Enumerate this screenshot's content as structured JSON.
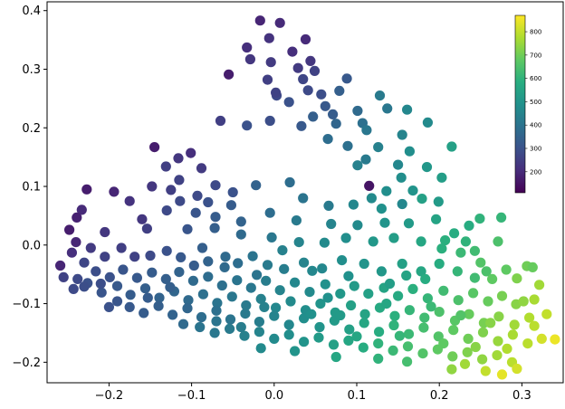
{
  "chart_data": {
    "type": "scatter",
    "title": "",
    "xlabel": "",
    "ylabel": "",
    "xlim": [
      -0.275,
      0.35
    ],
    "ylim": [
      -0.235,
      0.415
    ],
    "x_ticks": [
      -0.2,
      -0.1,
      0.0,
      0.1,
      0.2,
      0.3
    ],
    "x_tick_labels": [
      "−0.2",
      "−0.1",
      "0.0",
      "0.1",
      "0.2",
      "0.3"
    ],
    "y_ticks": [
      -0.2,
      -0.1,
      0.0,
      0.1,
      0.2,
      0.3,
      0.4
    ],
    "y_tick_labels": [
      "−0.2",
      "−0.1",
      "0.0",
      "0.1",
      "0.2",
      "0.3",
      "0.4"
    ],
    "grid": false,
    "colorbar": {
      "colormap": "viridis",
      "range": [
        110,
        870
      ],
      "ticks": [
        200,
        300,
        400,
        500,
        600,
        700,
        800
      ],
      "tick_labels": [
        "200",
        "300",
        "400",
        "500",
        "600",
        "700",
        "800"
      ]
    },
    "points": [
      [
        -0.017,
        0.383,
        190
      ],
      [
        -0.033,
        0.337,
        210
      ],
      [
        0.038,
        0.351,
        200
      ],
      [
        0.007,
        0.379,
        200
      ],
      [
        -0.006,
        0.353,
        220
      ],
      [
        -0.004,
        0.312,
        240
      ],
      [
        0.044,
        0.314,
        230
      ],
      [
        0.049,
        0.297,
        260
      ],
      [
        -0.029,
        0.317,
        230
      ],
      [
        0.035,
        0.283,
        270
      ],
      [
        0.018,
        0.244,
        300
      ],
      [
        0.003,
        0.255,
        280
      ],
      [
        0.062,
        0.237,
        320
      ],
      [
        -0.055,
        0.291,
        170
      ],
      [
        0.079,
        0.263,
        340
      ],
      [
        0.101,
        0.229,
        370
      ],
      [
        0.107,
        0.208,
        390
      ],
      [
        0.075,
        0.207,
        360
      ],
      [
        0.047,
        0.219,
        340
      ],
      [
        0.128,
        0.255,
        420
      ],
      [
        0.137,
        0.233,
        410
      ],
      [
        0.161,
        0.231,
        460
      ],
      [
        0.186,
        0.209,
        470
      ],
      [
        0.155,
        0.188,
        450
      ],
      [
        0.126,
        0.167,
        440
      ],
      [
        -0.033,
        0.204,
        300
      ],
      [
        -0.005,
        0.212,
        290
      ],
      [
        0.033,
        0.203,
        320
      ],
      [
        0.065,
        0.181,
        380
      ],
      [
        0.089,
        0.169,
        390
      ],
      [
        0.111,
        0.146,
        420
      ],
      [
        0.164,
        0.16,
        480
      ],
      [
        0.185,
        0.133,
        510
      ],
      [
        0.203,
        0.115,
        530
      ],
      [
        0.215,
        0.168,
        540
      ],
      [
        0.118,
        0.08,
        470
      ],
      [
        0.096,
        0.069,
        460
      ],
      [
        0.13,
        0.062,
        490
      ],
      [
        0.115,
        0.101,
        150
      ],
      [
        0.154,
        0.115,
        480
      ],
      [
        0.168,
        0.093,
        500
      ],
      [
        0.199,
        0.074,
        520
      ],
      [
        0.155,
        0.07,
        460
      ],
      [
        0.101,
        0.136,
        440
      ],
      [
        0.019,
        0.107,
        380
      ],
      [
        -0.022,
        0.102,
        350
      ],
      [
        0.035,
        0.08,
        400
      ],
      [
        0.066,
        0.067,
        420
      ],
      [
        -0.101,
        0.157,
        210
      ],
      [
        -0.116,
        0.148,
        230
      ],
      [
        -0.131,
        0.134,
        250
      ],
      [
        -0.088,
        0.131,
        240
      ],
      [
        -0.115,
        0.111,
        260
      ],
      [
        -0.148,
        0.1,
        230
      ],
      [
        -0.125,
        0.094,
        250
      ],
      [
        -0.071,
        0.102,
        280
      ],
      [
        -0.05,
        0.09,
        300
      ],
      [
        -0.093,
        0.084,
        280
      ],
      [
        -0.08,
        0.073,
        300
      ],
      [
        -0.114,
        0.075,
        280
      ],
      [
        -0.052,
        0.068,
        330
      ],
      [
        -0.095,
        0.055,
        310
      ],
      [
        -0.13,
        0.059,
        280
      ],
      [
        -0.071,
        0.048,
        330
      ],
      [
        -0.04,
        0.04,
        350
      ],
      [
        -0.005,
        0.055,
        380
      ],
      [
        0.027,
        0.042,
        420
      ],
      [
        0.069,
        0.036,
        450
      ],
      [
        0.101,
        0.034,
        470
      ],
      [
        0.134,
        0.038,
        500
      ],
      [
        0.163,
        0.037,
        520
      ],
      [
        0.196,
        0.044,
        550
      ],
      [
        0.218,
        0.02,
        580
      ],
      [
        0.236,
        0.033,
        580
      ],
      [
        0.275,
        0.047,
        610
      ],
      [
        0.207,
        0.008,
        590
      ],
      [
        0.232,
        0.006,
        600
      ],
      [
        0.178,
        0.006,
        560
      ],
      [
        0.145,
        0.012,
        530
      ],
      [
        0.12,
        0.006,
        510
      ],
      [
        0.087,
        0.012,
        480
      ],
      [
        0.061,
        0.004,
        470
      ],
      [
        0.03,
        0.005,
        450
      ],
      [
        -0.003,
        0.013,
        410
      ],
      [
        -0.04,
        0.018,
        370
      ],
      [
        -0.072,
        0.029,
        340
      ],
      [
        -0.105,
        0.027,
        310
      ],
      [
        -0.154,
        0.028,
        250
      ],
      [
        -0.205,
        0.022,
        230
      ],
      [
        -0.233,
        0.06,
        200
      ],
      [
        -0.227,
        0.095,
        170
      ],
      [
        -0.194,
        0.091,
        190
      ],
      [
        -0.175,
        0.075,
        220
      ],
      [
        -0.16,
        0.044,
        230
      ],
      [
        -0.239,
        0.047,
        180
      ],
      [
        -0.248,
        0.026,
        170
      ],
      [
        -0.259,
        -0.035,
        190
      ],
      [
        -0.24,
        0.005,
        190
      ],
      [
        -0.245,
        -0.013,
        210
      ],
      [
        -0.222,
        -0.005,
        240
      ],
      [
        -0.205,
        -0.02,
        260
      ],
      [
        -0.185,
        -0.005,
        250
      ],
      [
        -0.169,
        -0.02,
        260
      ],
      [
        -0.15,
        -0.018,
        280
      ],
      [
        -0.13,
        -0.01,
        300
      ],
      [
        -0.113,
        -0.021,
        320
      ],
      [
        -0.097,
        -0.035,
        330
      ],
      [
        -0.08,
        -0.028,
        350
      ],
      [
        -0.059,
        -0.02,
        370
      ],
      [
        -0.044,
        -0.031,
        380
      ],
      [
        -0.026,
        -0.019,
        400
      ],
      [
        -0.008,
        -0.034,
        420
      ],
      [
        0.012,
        -0.041,
        430
      ],
      [
        0.036,
        -0.03,
        450
      ],
      [
        0.058,
        -0.04,
        460
      ],
      [
        0.082,
        -0.026,
        480
      ],
      [
        0.109,
        -0.032,
        500
      ],
      [
        0.13,
        -0.045,
        510
      ],
      [
        0.155,
        -0.032,
        540
      ],
      [
        0.178,
        -0.045,
        560
      ],
      [
        0.2,
        -0.032,
        580
      ],
      [
        0.222,
        -0.045,
        610
      ],
      [
        0.243,
        -0.056,
        630
      ],
      [
        0.257,
        -0.045,
        650
      ],
      [
        0.281,
        -0.042,
        680
      ],
      [
        0.306,
        -0.036,
        700
      ],
      [
        0.313,
        -0.038,
        690
      ],
      [
        0.226,
        -0.013,
        620
      ],
      [
        0.25,
        -0.03,
        660
      ],
      [
        -0.23,
        -0.03,
        270
      ],
      [
        -0.216,
        -0.045,
        290
      ],
      [
        -0.199,
        -0.055,
        300
      ],
      [
        -0.183,
        -0.042,
        310
      ],
      [
        -0.166,
        -0.056,
        320
      ],
      [
        -0.148,
        -0.047,
        330
      ],
      [
        -0.131,
        -0.058,
        340
      ],
      [
        -0.115,
        -0.046,
        350
      ],
      [
        -0.098,
        -0.061,
        370
      ],
      [
        -0.08,
        -0.054,
        380
      ],
      [
        -0.063,
        -0.069,
        390
      ],
      [
        -0.045,
        -0.06,
        400
      ],
      [
        -0.028,
        -0.073,
        410
      ],
      [
        -0.01,
        -0.061,
        430
      ],
      [
        0.007,
        -0.077,
        450
      ],
      [
        0.025,
        -0.064,
        460
      ],
      [
        0.043,
        -0.08,
        470
      ],
      [
        0.062,
        -0.067,
        490
      ],
      [
        0.08,
        -0.083,
        510
      ],
      [
        0.097,
        -0.07,
        520
      ],
      [
        0.114,
        -0.083,
        540
      ],
      [
        0.133,
        -0.073,
        550
      ],
      [
        0.15,
        -0.087,
        570
      ],
      [
        0.168,
        -0.075,
        590
      ],
      [
        0.186,
        -0.091,
        610
      ],
      [
        0.205,
        -0.078,
        630
      ],
      [
        0.223,
        -0.094,
        650
      ],
      [
        0.241,
        -0.082,
        670
      ],
      [
        0.259,
        -0.096,
        690
      ],
      [
        0.276,
        -0.087,
        710
      ],
      [
        0.293,
        -0.101,
        730
      ],
      [
        0.315,
        -0.093,
        770
      ],
      [
        0.264,
        -0.058,
        680
      ],
      [
        -0.243,
        -0.075,
        280
      ],
      [
        -0.226,
        -0.065,
        300
      ],
      [
        -0.209,
        -0.081,
        310
      ],
      [
        -0.19,
        -0.07,
        320
      ],
      [
        -0.174,
        -0.085,
        330
      ],
      [
        -0.156,
        -0.074,
        340
      ],
      [
        -0.139,
        -0.09,
        350
      ],
      [
        -0.121,
        -0.079,
        360
      ],
      [
        -0.104,
        -0.094,
        370
      ],
      [
        -0.086,
        -0.084,
        390
      ],
      [
        -0.069,
        -0.099,
        400
      ],
      [
        -0.051,
        -0.088,
        410
      ],
      [
        -0.034,
        -0.103,
        420
      ],
      [
        -0.016,
        -0.092,
        440
      ],
      [
        0.002,
        -0.107,
        460
      ],
      [
        0.02,
        -0.096,
        470
      ],
      [
        0.038,
        -0.111,
        480
      ],
      [
        0.056,
        -0.1,
        500
      ],
      [
        0.074,
        -0.115,
        520
      ],
      [
        0.093,
        -0.103,
        540
      ],
      [
        0.11,
        -0.118,
        550
      ],
      [
        0.128,
        -0.107,
        570
      ],
      [
        0.146,
        -0.121,
        590
      ],
      [
        0.164,
        -0.111,
        610
      ],
      [
        0.182,
        -0.124,
        630
      ],
      [
        0.2,
        -0.114,
        650
      ],
      [
        0.219,
        -0.129,
        670
      ],
      [
        0.236,
        -0.118,
        690
      ],
      [
        0.254,
        -0.133,
        710
      ],
      [
        0.272,
        -0.122,
        730
      ],
      [
        0.291,
        -0.136,
        760
      ],
      [
        0.309,
        -0.124,
        780
      ],
      [
        0.33,
        -0.118,
        800
      ],
      [
        -0.175,
        -0.106,
        320
      ],
      [
        -0.158,
        -0.116,
        330
      ],
      [
        -0.14,
        -0.104,
        340
      ],
      [
        -0.123,
        -0.119,
        350
      ],
      [
        -0.105,
        -0.108,
        360
      ],
      [
        -0.088,
        -0.123,
        380
      ],
      [
        -0.07,
        -0.112,
        390
      ],
      [
        -0.053,
        -0.127,
        400
      ],
      [
        -0.035,
        -0.117,
        420
      ],
      [
        -0.018,
        -0.131,
        430
      ],
      [
        0.0,
        -0.121,
        450
      ],
      [
        0.018,
        -0.136,
        460
      ],
      [
        0.036,
        -0.125,
        480
      ],
      [
        0.055,
        -0.14,
        500
      ],
      [
        0.073,
        -0.129,
        520
      ],
      [
        0.091,
        -0.144,
        540
      ],
      [
        0.109,
        -0.133,
        560
      ],
      [
        0.127,
        -0.148,
        580
      ],
      [
        0.145,
        -0.137,
        600
      ],
      [
        0.163,
        -0.152,
        620
      ],
      [
        0.181,
        -0.141,
        640
      ],
      [
        0.199,
        -0.156,
        660
      ],
      [
        0.217,
        -0.145,
        680
      ],
      [
        0.235,
        -0.16,
        700
      ],
      [
        0.253,
        -0.149,
        720
      ],
      [
        0.271,
        -0.164,
        750
      ],
      [
        0.289,
        -0.153,
        770
      ],
      [
        0.307,
        -0.168,
        790
      ],
      [
        0.324,
        -0.16,
        820
      ],
      [
        0.34,
        -0.161,
        850
      ],
      [
        -0.09,
        -0.14,
        400
      ],
      [
        -0.072,
        -0.15,
        410
      ],
      [
        -0.054,
        -0.143,
        420
      ],
      [
        -0.036,
        -0.155,
        440
      ],
      [
        -0.018,
        -0.148,
        450
      ],
      [
        0.0,
        -0.16,
        470
      ],
      [
        0.018,
        -0.153,
        480
      ],
      [
        0.036,
        -0.165,
        500
      ],
      [
        0.054,
        -0.158,
        520
      ],
      [
        0.072,
        -0.17,
        540
      ],
      [
        0.09,
        -0.163,
        560
      ],
      [
        0.108,
        -0.175,
        580
      ],
      [
        0.126,
        -0.168,
        600
      ],
      [
        0.144,
        -0.18,
        620
      ],
      [
        0.162,
        -0.173,
        640
      ],
      [
        0.18,
        -0.185,
        660
      ],
      [
        0.198,
        -0.178,
        680
      ],
      [
        0.216,
        -0.19,
        700
      ],
      [
        0.234,
        -0.183,
        720
      ],
      [
        0.252,
        -0.195,
        740
      ],
      [
        0.27,
        -0.188,
        760
      ],
      [
        0.288,
        -0.2,
        790
      ],
      [
        0.256,
        -0.215,
        800
      ],
      [
        0.276,
        -0.221,
        840
      ],
      [
        0.294,
        -0.211,
        820
      ],
      [
        0.231,
        -0.203,
        760
      ],
      [
        0.215,
        -0.212,
        740
      ],
      [
        0.025,
        -0.181,
        500
      ],
      [
        0.075,
        -0.191,
        560
      ],
      [
        0.126,
        -0.194,
        600
      ],
      [
        0.161,
        -0.199,
        640
      ],
      [
        -0.016,
        -0.176,
        470
      ],
      [
        -0.145,
        0.167,
        170
      ],
      [
        -0.065,
        0.212,
        250
      ],
      [
        0.002,
        0.26,
        260
      ],
      [
        0.022,
        0.33,
        210
      ],
      [
        0.029,
        0.302,
        240
      ],
      [
        -0.008,
        0.282,
        250
      ],
      [
        0.057,
        0.257,
        290
      ],
      [
        0.088,
        0.284,
        320
      ],
      [
        0.041,
        0.264,
        280
      ],
      [
        0.071,
        0.223,
        330
      ],
      [
        0.112,
        0.196,
        410
      ],
      [
        0.15,
        0.137,
        460
      ],
      [
        0.136,
        0.092,
        480
      ],
      [
        0.179,
        0.079,
        540
      ],
      [
        0.249,
        0.045,
        600
      ],
      [
        0.271,
        0.006,
        650
      ],
      [
        0.294,
        -0.057,
        720
      ],
      [
        0.321,
        -0.068,
        760
      ],
      [
        0.302,
        -0.096,
        740
      ],
      [
        0.243,
        -0.01,
        630
      ],
      [
        0.203,
        -0.006,
        590
      ],
      [
        0.183,
        -0.058,
        580
      ],
      [
        0.16,
        -0.052,
        550
      ],
      [
        0.14,
        -0.066,
        530
      ],
      [
        0.09,
        -0.053,
        490
      ],
      [
        0.065,
        -0.09,
        490
      ],
      [
        0.046,
        -0.044,
        460
      ],
      [
        0.01,
        -0.009,
        440
      ],
      [
        -0.021,
        -0.051,
        400
      ],
      [
        -0.06,
        -0.038,
        370
      ],
      [
        -0.087,
        -0.005,
        340
      ],
      [
        -0.126,
        -0.072,
        340
      ],
      [
        -0.19,
        -0.096,
        310
      ],
      [
        -0.21,
        -0.066,
        290
      ],
      [
        -0.238,
        -0.058,
        280
      ],
      [
        -0.255,
        -0.055,
        260
      ],
      [
        -0.23,
        -0.071,
        290
      ],
      [
        -0.2,
        -0.106,
        300
      ],
      [
        -0.153,
        -0.09,
        330
      ],
      [
        -0.11,
        -0.135,
        370
      ],
      [
        -0.07,
        -0.13,
        400
      ],
      [
        -0.04,
        -0.14,
        430
      ],
      [
        -0.012,
        -0.106,
        440
      ],
      [
        0.045,
        -0.118,
        490
      ],
      [
        0.1,
        -0.156,
        560
      ],
      [
        0.152,
        -0.155,
        610
      ],
      [
        0.205,
        -0.168,
        680
      ],
      [
        0.244,
        -0.174,
        730
      ],
      [
        0.282,
        -0.177,
        780
      ],
      [
        0.315,
        -0.138,
        790
      ],
      [
        0.262,
        -0.133,
        730
      ],
      [
        0.226,
        -0.12,
        660
      ],
      [
        0.19,
        -0.105,
        620
      ],
      [
        0.136,
        -0.1,
        560
      ],
      [
        0.08,
        -0.12,
        520
      ]
    ]
  }
}
